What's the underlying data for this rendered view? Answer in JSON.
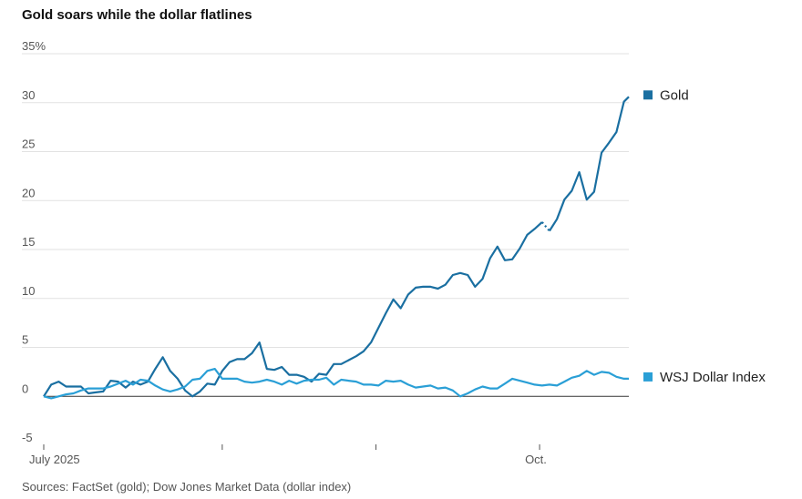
{
  "chart_data": {
    "type": "line",
    "title": "Gold soars while the dollar flatlines",
    "source": "Sources: FactSet (gold); Dow Jones Market Data (dollar index)",
    "ylabel": "",
    "xlabel": "",
    "ylim": [
      -5,
      35
    ],
    "yticks": [
      {
        "value": 35,
        "label": "35%"
      },
      {
        "value": 30,
        "label": "30"
      },
      {
        "value": 25,
        "label": "25"
      },
      {
        "value": 20,
        "label": "20"
      },
      {
        "value": 15,
        "label": "15"
      },
      {
        "value": 10,
        "label": "10"
      },
      {
        "value": 5,
        "label": "5"
      },
      {
        "value": 0,
        "label": "0"
      },
      {
        "value": -5,
        "label": "-5"
      }
    ],
    "xlim": [
      0,
      118
    ],
    "xticks": [
      {
        "value": 0,
        "label": "July 2025"
      },
      {
        "value": 36,
        "label": ""
      },
      {
        "value": 67,
        "label": ""
      },
      {
        "value": 100,
        "label": "Oct."
      }
    ],
    "series": [
      {
        "name": "Gold",
        "color": "#1a6fa1",
        "gap_after_index": 66,
        "x": [
          0,
          1.5,
          3,
          4.5,
          6,
          7.5,
          9,
          10.5,
          12,
          13.5,
          15,
          16.5,
          18,
          19.5,
          21,
          22.5,
          24,
          25.5,
          27,
          28.5,
          30,
          31.5,
          33,
          34.5,
          36,
          37.5,
          39,
          40.5,
          42,
          43.5,
          45,
          46.5,
          48,
          49.5,
          51,
          52.5,
          54,
          55.5,
          57,
          58.5,
          60,
          61.5,
          63,
          64.5,
          66,
          69,
          70.5,
          72,
          73.5,
          75,
          76.5,
          78,
          79.5,
          81,
          82.5,
          84,
          85.5,
          87,
          88.5,
          90,
          91.5,
          93,
          94.5,
          96,
          97.5,
          99,
          100.5,
          102,
          103.5,
          105,
          106.5,
          108,
          109.5,
          111,
          112.5,
          114,
          115.5,
          117,
          118
        ],
        "values": [
          0,
          1.2,
          1.5,
          1.0,
          1.0,
          1.0,
          0.3,
          0.4,
          0.5,
          1.6,
          1.5,
          0.9,
          1.5,
          1.2,
          1.5,
          2.8,
          4.0,
          2.6,
          1.8,
          0.6,
          0,
          0.5,
          1.3,
          1.2,
          2.6,
          3.5,
          3.8,
          3.8,
          4.4,
          5.5,
          2.8,
          2.7,
          3.0,
          2.2,
          2.2,
          2.0,
          1.5,
          2.3,
          2.2,
          3.3,
          3.3,
          3.7,
          4.1,
          4.6,
          5.5,
          8.5,
          9.9,
          9.0,
          10.4,
          11.1,
          11.2,
          11.2,
          11.0,
          11.4,
          12.4,
          12.6,
          12.4,
          11.2,
          12.0,
          14.1,
          15.3,
          13.9,
          14.0,
          15.1,
          16.5,
          17.1,
          17.8,
          16.9,
          18.1,
          20.1,
          21.0,
          22.9,
          20.1,
          20.9,
          24.9,
          25.9,
          27.0,
          30.1,
          30.6
        ]
      },
      {
        "name": "WSJ Dollar Index",
        "color": "#2a9fd6",
        "x": [
          0,
          1.5,
          3,
          4.5,
          6,
          7.5,
          9,
          10.5,
          12,
          13.5,
          15,
          16.5,
          18,
          19.5,
          21,
          22.5,
          24,
          25.5,
          27,
          28.5,
          30,
          31.5,
          33,
          34.5,
          36,
          37.5,
          39,
          40.5,
          42,
          43.5,
          45,
          46.5,
          48,
          49.5,
          51,
          52.5,
          54,
          55.5,
          57,
          58.5,
          60,
          61.5,
          63,
          64.5,
          66,
          67.5,
          69,
          70.5,
          72,
          73.5,
          75,
          76.5,
          78,
          79.5,
          81,
          82.5,
          84,
          85.5,
          87,
          88.5,
          90,
          91.5,
          93,
          94.5,
          96,
          97.5,
          99,
          100.5,
          102,
          103.5,
          105,
          106.5,
          108,
          109.5,
          111,
          112.5,
          114,
          115.5,
          117,
          118
        ],
        "values": [
          0,
          -0.2,
          0,
          0.2,
          0.3,
          0.6,
          0.8,
          0.8,
          0.8,
          1.0,
          1.3,
          1.6,
          1.2,
          1.7,
          1.6,
          1.1,
          0.7,
          0.5,
          0.7,
          1.0,
          1.7,
          1.8,
          2.6,
          2.8,
          1.8,
          1.8,
          1.8,
          1.5,
          1.4,
          1.5,
          1.7,
          1.5,
          1.2,
          1.6,
          1.3,
          1.6,
          1.7,
          1.7,
          1.9,
          1.2,
          1.7,
          1.6,
          1.5,
          1.2,
          1.2,
          1.1,
          1.6,
          1.5,
          1.6,
          1.2,
          0.9,
          1.0,
          1.1,
          0.8,
          0.9,
          0.6,
          0.0,
          0.3,
          0.7,
          1.0,
          0.8,
          0.8,
          1.3,
          1.8,
          1.6,
          1.4,
          1.2,
          1.1,
          1.2,
          1.1,
          1.5,
          1.9,
          2.1,
          2.6,
          2.2,
          2.5,
          2.4,
          2.0,
          1.8,
          1.8
        ]
      }
    ]
  }
}
